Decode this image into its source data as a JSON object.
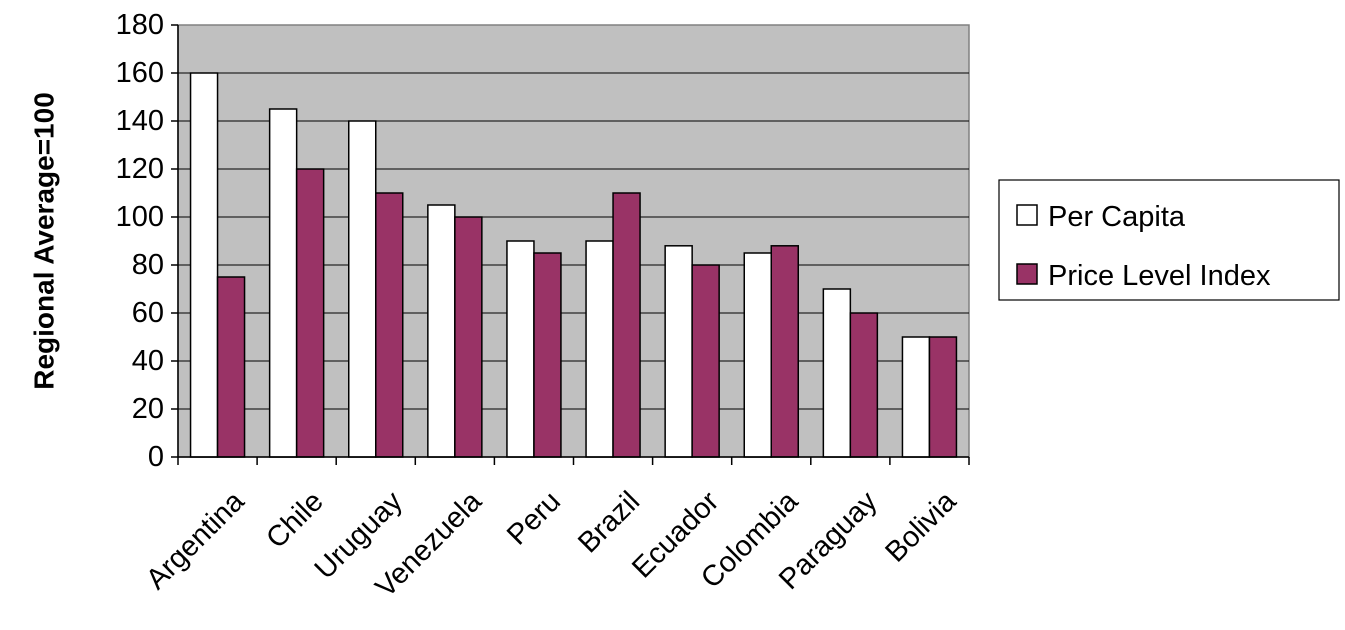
{
  "chart_data": {
    "type": "bar",
    "title": "",
    "xlabel": "",
    "ylabel": "Regional Average=100",
    "ylim": [
      0,
      180
    ],
    "yticks": [
      0,
      20,
      40,
      60,
      80,
      100,
      120,
      140,
      160,
      180
    ],
    "categories": [
      "Argentina",
      "Chile",
      "Uruguay",
      "Venezuela",
      "Peru",
      "Brazil",
      "Ecuador",
      "Colombia",
      "Paraguay",
      "Bolivia"
    ],
    "series": [
      {
        "name": "Per Capita",
        "color": "#ffffff",
        "values": [
          160,
          145,
          140,
          105,
          90,
          90,
          88,
          85,
          70,
          50
        ]
      },
      {
        "name": "Price Level Index",
        "color": "#993366",
        "values": [
          75,
          120,
          110,
          100,
          85,
          110,
          80,
          88,
          60,
          50
        ]
      }
    ],
    "plot_background": "#c0c0c0",
    "grid": true,
    "legend_position": "right"
  }
}
